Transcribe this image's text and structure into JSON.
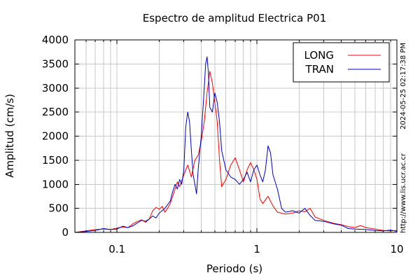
{
  "chart_data": {
    "type": "line",
    "title": "Espectro de amplitud Electrica P01",
    "xlabel": "Periodo (s)",
    "ylabel": "Amplitud (cm/s)",
    "x_scale": "log",
    "xlim": [
      0.05,
      10
    ],
    "ylim": [
      0,
      4000
    ],
    "x_ticks": [
      {
        "value": 0.1,
        "label": "0.1"
      },
      {
        "value": 1,
        "label": "1"
      },
      {
        "value": 10,
        "label": "10"
      }
    ],
    "y_ticks": [
      {
        "value": 0,
        "label": "0"
      },
      {
        "value": 500,
        "label": "500"
      },
      {
        "value": 1000,
        "label": "1000"
      },
      {
        "value": 1500,
        "label": "1500"
      },
      {
        "value": 2000,
        "label": "2000"
      },
      {
        "value": 2500,
        "label": "2500"
      },
      {
        "value": 3000,
        "label": "3000"
      },
      {
        "value": 3500,
        "label": "3500"
      },
      {
        "value": 4000,
        "label": "4000"
      }
    ],
    "grid": true,
    "legend_position": "top-right",
    "side_annotations": [
      "2024-05-25 02:17:38 PM",
      "http://www.lis.ucr.ac.cr"
    ],
    "series": [
      {
        "name": "LONG",
        "color": "#ff0000",
        "points": [
          [
            0.05,
            0
          ],
          [
            0.06,
            30
          ],
          [
            0.07,
            60
          ],
          [
            0.08,
            70
          ],
          [
            0.09,
            60
          ],
          [
            0.1,
            90
          ],
          [
            0.11,
            110
          ],
          [
            0.12,
            100
          ],
          [
            0.13,
            180
          ],
          [
            0.14,
            230
          ],
          [
            0.15,
            260
          ],
          [
            0.16,
            210
          ],
          [
            0.17,
            280
          ],
          [
            0.18,
            450
          ],
          [
            0.19,
            520
          ],
          [
            0.2,
            480
          ],
          [
            0.21,
            540
          ],
          [
            0.22,
            420
          ],
          [
            0.23,
            500
          ],
          [
            0.24,
            600
          ],
          [
            0.25,
            750
          ],
          [
            0.26,
            900
          ],
          [
            0.27,
            1050
          ],
          [
            0.28,
            950
          ],
          [
            0.3,
            1200
          ],
          [
            0.32,
            1400
          ],
          [
            0.34,
            1150
          ],
          [
            0.36,
            1500
          ],
          [
            0.38,
            1600
          ],
          [
            0.4,
            1900
          ],
          [
            0.42,
            2300
          ],
          [
            0.44,
            2900
          ],
          [
            0.46,
            3350
          ],
          [
            0.48,
            3100
          ],
          [
            0.5,
            2700
          ],
          [
            0.52,
            2300
          ],
          [
            0.54,
            1500
          ],
          [
            0.56,
            950
          ],
          [
            0.6,
            1100
          ],
          [
            0.65,
            1400
          ],
          [
            0.7,
            1550
          ],
          [
            0.75,
            1300
          ],
          [
            0.8,
            1050
          ],
          [
            0.85,
            1300
          ],
          [
            0.9,
            1450
          ],
          [
            0.95,
            1300
          ],
          [
            1.0,
            1100
          ],
          [
            1.05,
            700
          ],
          [
            1.1,
            600
          ],
          [
            1.2,
            750
          ],
          [
            1.3,
            550
          ],
          [
            1.4,
            420
          ],
          [
            1.6,
            380
          ],
          [
            1.8,
            400
          ],
          [
            2.0,
            450
          ],
          [
            2.2,
            430
          ],
          [
            2.4,
            500
          ],
          [
            2.6,
            320
          ],
          [
            3.0,
            250
          ],
          [
            3.5,
            190
          ],
          [
            4.0,
            160
          ],
          [
            4.5,
            120
          ],
          [
            5.0,
            100
          ],
          [
            5.5,
            140
          ],
          [
            6.0,
            100
          ],
          [
            7.0,
            70
          ],
          [
            8.0,
            40
          ],
          [
            9.0,
            30
          ],
          [
            10.0,
            40
          ]
        ]
      },
      {
        "name": "TRAN",
        "color": "#0000c8",
        "points": [
          [
            0.05,
            0
          ],
          [
            0.06,
            20
          ],
          [
            0.07,
            40
          ],
          [
            0.08,
            80
          ],
          [
            0.09,
            60
          ],
          [
            0.1,
            70
          ],
          [
            0.11,
            130
          ],
          [
            0.12,
            100
          ],
          [
            0.13,
            140
          ],
          [
            0.14,
            200
          ],
          [
            0.15,
            250
          ],
          [
            0.16,
            230
          ],
          [
            0.17,
            280
          ],
          [
            0.18,
            340
          ],
          [
            0.19,
            300
          ],
          [
            0.2,
            400
          ],
          [
            0.22,
            500
          ],
          [
            0.24,
            650
          ],
          [
            0.25,
            850
          ],
          [
            0.26,
            1000
          ],
          [
            0.27,
            900
          ],
          [
            0.28,
            1100
          ],
          [
            0.29,
            1000
          ],
          [
            0.3,
            1300
          ],
          [
            0.31,
            2200
          ],
          [
            0.32,
            2500
          ],
          [
            0.33,
            2300
          ],
          [
            0.34,
            1700
          ],
          [
            0.35,
            1200
          ],
          [
            0.36,
            1000
          ],
          [
            0.37,
            800
          ],
          [
            0.38,
            1300
          ],
          [
            0.4,
            2000
          ],
          [
            0.42,
            3000
          ],
          [
            0.43,
            3500
          ],
          [
            0.44,
            3650
          ],
          [
            0.45,
            3300
          ],
          [
            0.46,
            2600
          ],
          [
            0.48,
            2500
          ],
          [
            0.5,
            2900
          ],
          [
            0.52,
            2700
          ],
          [
            0.54,
            2300
          ],
          [
            0.56,
            1700
          ],
          [
            0.6,
            1300
          ],
          [
            0.65,
            1150
          ],
          [
            0.7,
            1100
          ],
          [
            0.75,
            1000
          ],
          [
            0.8,
            1100
          ],
          [
            0.85,
            1250
          ],
          [
            0.9,
            1050
          ],
          [
            0.95,
            1300
          ],
          [
            1.0,
            1400
          ],
          [
            1.05,
            1200
          ],
          [
            1.1,
            1050
          ],
          [
            1.15,
            1300
          ],
          [
            1.2,
            1800
          ],
          [
            1.25,
            1650
          ],
          [
            1.3,
            1200
          ],
          [
            1.4,
            900
          ],
          [
            1.5,
            500
          ],
          [
            1.6,
            420
          ],
          [
            1.8,
            450
          ],
          [
            2.0,
            400
          ],
          [
            2.2,
            500
          ],
          [
            2.4,
            350
          ],
          [
            2.6,
            250
          ],
          [
            3.0,
            230
          ],
          [
            3.5,
            180
          ],
          [
            4.0,
            150
          ],
          [
            4.5,
            80
          ],
          [
            5.0,
            70
          ],
          [
            6.0,
            60
          ],
          [
            7.0,
            40
          ],
          [
            8.0,
            30
          ],
          [
            9.0,
            50
          ],
          [
            10.0,
            20
          ]
        ]
      }
    ]
  }
}
